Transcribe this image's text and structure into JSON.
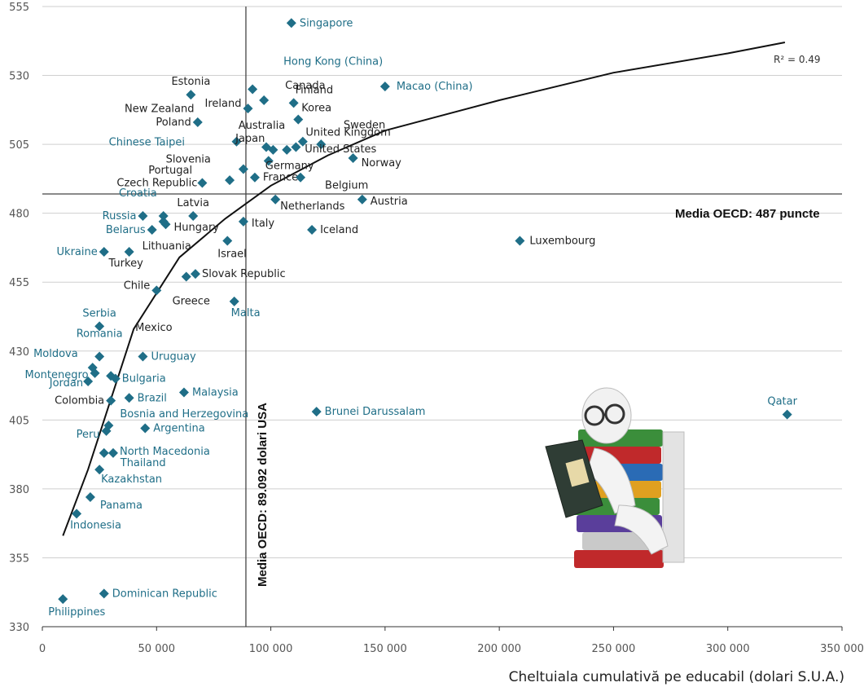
{
  "chart_data": {
    "type": "scatter",
    "title": "",
    "xlabel": "Cheltuiala cumulativă pe educabil (dolari S.U.A.)",
    "ylabel": "",
    "xlim": [
      0,
      350000
    ],
    "ylim": [
      330,
      555
    ],
    "x_ticks": [
      0,
      50000,
      100000,
      150000,
      200000,
      250000,
      300000,
      350000
    ],
    "x_tick_labels": [
      "0",
      "50 000",
      "100 000",
      "150 000",
      "200 000",
      "250 000",
      "300 000",
      "350 000"
    ],
    "y_ticks": [
      330,
      355,
      380,
      405,
      430,
      455,
      480,
      505,
      530,
      555
    ],
    "y_tick_labels": [
      "330",
      "355",
      "380",
      "405",
      "430",
      "455",
      "480",
      "505",
      "530",
      "555"
    ],
    "grid": true,
    "point_color": "#1f6e87",
    "label_color_dark": "#222222",
    "label_color_blue": "#1f6e87",
    "r2_label": "R² = 0.49",
    "reference_lines": {
      "horizontal": {
        "y": 487,
        "label": "Media OECD: 487 puncte"
      },
      "vertical": {
        "x": 89092,
        "label": "Media OECD: 89.092 dolari USA"
      }
    },
    "trend": {
      "type": "logarithmic",
      "x_start": 9000,
      "x_end": 325000,
      "points": [
        [
          9000,
          363
        ],
        [
          20000,
          387
        ],
        [
          40000,
          438
        ],
        [
          60000,
          464
        ],
        [
          80000,
          478
        ],
        [
          100000,
          490
        ],
        [
          125000,
          501
        ],
        [
          150000,
          510
        ],
        [
          200000,
          521
        ],
        [
          250000,
          531
        ],
        [
          300000,
          538
        ],
        [
          325000,
          542
        ]
      ]
    },
    "points": [
      {
        "name": "Singapore",
        "x": 109000,
        "y": 549,
        "group": "blue"
      },
      {
        "name": "Hong Kong (China)",
        "x": 92000,
        "y": 525,
        "group": "blue"
      },
      {
        "name": "Macao (China)",
        "x": 150000,
        "y": 526,
        "group": "blue"
      },
      {
        "name": "Estonia",
        "x": 65000,
        "y": 523,
        "group": "dark"
      },
      {
        "name": "Canada",
        "x": 97000,
        "y": 521,
        "group": "dark"
      },
      {
        "name": "Ireland",
        "x": 90000,
        "y": 518,
        "group": "dark"
      },
      {
        "name": "Finland",
        "x": 110000,
        "y": 520,
        "group": "dark"
      },
      {
        "name": "New Zealand",
        "x": 85000,
        "y": 506,
        "group": "dark"
      },
      {
        "name": "Poland",
        "x": 68000,
        "y": 513,
        "group": "dark"
      },
      {
        "name": "Korea",
        "x": 112000,
        "y": 514,
        "group": "dark"
      },
      {
        "name": "United Kingdom",
        "x": 111000,
        "y": 504,
        "group": "dark"
      },
      {
        "name": "Australia",
        "x": 107000,
        "y": 503,
        "group": "dark"
      },
      {
        "name": "Japan",
        "x": 101000,
        "y": 503,
        "group": "dark"
      },
      {
        "name": "Chinese Taipei",
        "x": 98000,
        "y": 504,
        "group": "blue"
      },
      {
        "name": "Sweden",
        "x": 114000,
        "y": 506,
        "group": "dark"
      },
      {
        "name": "United States",
        "x": 122000,
        "y": 505,
        "group": "dark"
      },
      {
        "name": "Germany",
        "x": 99000,
        "y": 499,
        "group": "dark"
      },
      {
        "name": "Slovenia",
        "x": 88000,
        "y": 496,
        "group": "dark"
      },
      {
        "name": "Norway",
        "x": 136000,
        "y": 500,
        "group": "dark"
      },
      {
        "name": "Portugal",
        "x": 82000,
        "y": 492,
        "group": "dark"
      },
      {
        "name": "France",
        "x": 93000,
        "y": 493,
        "group": "dark"
      },
      {
        "name": "Belgium",
        "x": 113000,
        "y": 493,
        "group": "dark"
      },
      {
        "name": "Czech Republic",
        "x": 70000,
        "y": 491,
        "group": "dark"
      },
      {
        "name": "Netherlands",
        "x": 102000,
        "y": 485,
        "group": "dark"
      },
      {
        "name": "Austria",
        "x": 140000,
        "y": 485,
        "group": "dark"
      },
      {
        "name": "Croatia",
        "x": 53000,
        "y": 479,
        "group": "blue"
      },
      {
        "name": "Latvia",
        "x": 66000,
        "y": 479,
        "group": "dark"
      },
      {
        "name": "Russia",
        "x": 44000,
        "y": 479,
        "group": "blue"
      },
      {
        "name": "Belarus",
        "x": 48000,
        "y": 474,
        "group": "blue"
      },
      {
        "name": "Hungary",
        "x": 54000,
        "y": 476,
        "group": "dark"
      },
      {
        "name": "Lithuania",
        "x": 53000,
        "y": 477,
        "group": "dark"
      },
      {
        "name": "Italy",
        "x": 88000,
        "y": 477,
        "group": "dark"
      },
      {
        "name": "Iceland",
        "x": 118000,
        "y": 474,
        "group": "dark"
      },
      {
        "name": "Luxembourg",
        "x": 209000,
        "y": 470,
        "group": "dark"
      },
      {
        "name": "Israel",
        "x": 81000,
        "y": 470,
        "group": "dark"
      },
      {
        "name": "Ukraine",
        "x": 27000,
        "y": 466,
        "group": "blue"
      },
      {
        "name": "Turkey",
        "x": 38000,
        "y": 466,
        "group": "dark"
      },
      {
        "name": "Slovak Republic",
        "x": 67000,
        "y": 458,
        "group": "dark"
      },
      {
        "name": "Greece",
        "x": 63000,
        "y": 457,
        "group": "dark"
      },
      {
        "name": "Chile",
        "x": 50000,
        "y": 452,
        "group": "dark"
      },
      {
        "name": "Malta",
        "x": 84000,
        "y": 448,
        "group": "blue"
      },
      {
        "name": "Serbia",
        "x": 25000,
        "y": 439,
        "group": "blue"
      },
      {
        "name": "Romania",
        "x": 25000,
        "y": 428,
        "group": "blue"
      },
      {
        "name": "Uruguay",
        "x": 44000,
        "y": 428,
        "group": "blue"
      },
      {
        "name": "Moldova",
        "x": 22000,
        "y": 424,
        "group": "blue"
      },
      {
        "name": "Mexico",
        "x": 30000,
        "y": 421,
        "group": "dark"
      },
      {
        "name": "Montenegro",
        "x": 23000,
        "y": 422,
        "group": "blue"
      },
      {
        "name": "Jordan",
        "x": 20000,
        "y": 419,
        "group": "blue"
      },
      {
        "name": "Bulgaria",
        "x": 32000,
        "y": 420,
        "group": "blue"
      },
      {
        "name": "Malaysia",
        "x": 62000,
        "y": 415,
        "group": "blue"
      },
      {
        "name": "Colombia",
        "x": 30000,
        "y": 412,
        "group": "dark"
      },
      {
        "name": "Brazil",
        "x": 38000,
        "y": 413,
        "group": "blue"
      },
      {
        "name": "Brunei Darussalam",
        "x": 120000,
        "y": 408,
        "group": "blue"
      },
      {
        "name": "Qatar",
        "x": 326000,
        "y": 407,
        "group": "blue"
      },
      {
        "name": "Bosnia and Herzegovina",
        "x": 29000,
        "y": 403,
        "group": "blue"
      },
      {
        "name": "Peru",
        "x": 28000,
        "y": 401,
        "group": "blue"
      },
      {
        "name": "Argentina",
        "x": 45000,
        "y": 402,
        "group": "blue"
      },
      {
        "name": "North Macedonia",
        "x": 31000,
        "y": 393,
        "group": "blue"
      },
      {
        "name": "Thailand",
        "x": 27000,
        "y": 393,
        "group": "blue"
      },
      {
        "name": "Kazakhstan",
        "x": 25000,
        "y": 387,
        "group": "blue"
      },
      {
        "name": "Panama",
        "x": 21000,
        "y": 377,
        "group": "blue"
      },
      {
        "name": "Indonesia",
        "x": 15000,
        "y": 371,
        "group": "blue"
      },
      {
        "name": "Dominican Republic",
        "x": 27000,
        "y": 342,
        "group": "blue"
      },
      {
        "name": "Philippines",
        "x": 9000,
        "y": 340,
        "group": "blue"
      }
    ]
  }
}
